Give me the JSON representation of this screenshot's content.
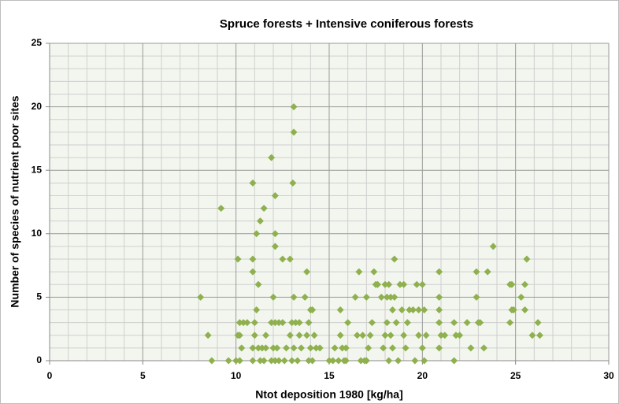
{
  "chart_data": {
    "type": "scatter",
    "title": "Spruce forests + Intensive coniferous forests",
    "xlabel": "Ntot deposition 1980 [kg/ha]",
    "ylabel": "Number of species of nutrient poor sites",
    "color": "#8fb04e",
    "xlim": [
      0,
      30
    ],
    "xticks": [
      0,
      5,
      10,
      15,
      20,
      25,
      30
    ],
    "ylim": [
      0,
      25
    ],
    "yticks": [
      0,
      5,
      10,
      15,
      20,
      25
    ],
    "grid": true,
    "minor_grid": true,
    "x": [
      8.1,
      8.5,
      8.7,
      9.2,
      9.6,
      10.1,
      10.1,
      10.2,
      10.2,
      10.4,
      10.6,
      10.2,
      10.3,
      10.0,
      10.9,
      10.9,
      10.9,
      11.2,
      11.1,
      11.0,
      11.0,
      10.9,
      10.9,
      11.1,
      11.3,
      11.5,
      11.2,
      11.4,
      11.3,
      11.5,
      11.6,
      11.6,
      11.9,
      12.1,
      12.1,
      12.1,
      12.0,
      11.9,
      12.1,
      12.3,
      12.0,
      12.2,
      12.1,
      11.9,
      12.3,
      12.5,
      12.5,
      12.6,
      12.7,
      12.9,
      13.1,
      13.1,
      13.05,
      13.1,
      13.0,
      13.2,
      12.9,
      13.1,
      13.0,
      13.3,
      13.4,
      13.5,
      13.4,
      13.8,
      13.7,
      14.0,
      14.1,
      13.8,
      13.9,
      14.0,
      13.9,
      14.1,
      14.2,
      14.3,
      14.5,
      15.0,
      15.2,
      15.3,
      15.5,
      15.6,
      15.6,
      15.7,
      15.8,
      15.9,
      16.0,
      15.9,
      16.4,
      16.5,
      16.6,
      16.7,
      16.8,
      16.9,
      17.0,
      17.1,
      17.0,
      17.2,
      17.4,
      17.5,
      17.6,
      17.3,
      17.8,
      18.0,
      18.1,
      18.0,
      17.9,
      18.2,
      18.2,
      18.3,
      18.1,
      18.3,
      18.4,
      18.5,
      18.5,
      18.4,
      18.6,
      18.7,
      18.8,
      18.9,
      19.0,
      19.0,
      19.1,
      19.2,
      19.3,
      19.5,
      19.6,
      19.7,
      19.8,
      19.8,
      20.0,
      20.1,
      20.0,
      20.1,
      20.2,
      20.9,
      20.9,
      20.9,
      20.9,
      20.9,
      21.0,
      21.2,
      21.7,
      21.7,
      21.8,
      22.0,
      22.4,
      22.6,
      22.9,
      22.9,
      23.0,
      23.1,
      23.3,
      23.5,
      23.8,
      24.7,
      24.8,
      24.7,
      24.8,
      24.9,
      25.3,
      25.5,
      25.5,
      25.6,
      25.9,
      26.2,
      26.3
    ],
    "values": [
      5,
      2,
      0,
      12,
      0,
      8,
      2,
      2,
      3,
      3,
      3,
      0,
      1,
      0,
      14,
      8,
      7,
      6,
      4,
      3,
      2,
      1,
      0,
      10,
      11,
      12,
      1,
      1,
      0,
      0,
      2,
      1,
      16,
      13,
      10,
      9,
      5,
      3,
      3,
      3,
      1,
      1,
      0,
      0,
      0,
      8,
      3,
      0,
      1,
      8,
      20,
      18,
      14,
      5,
      3,
      3,
      2,
      1,
      0,
      0,
      2,
      1,
      3,
      7,
      5,
      4,
      4,
      2,
      3,
      1,
      0,
      0,
      2,
      1,
      1,
      0,
      0,
      1,
      0,
      4,
      2,
      1,
      0,
      0,
      3,
      1,
      5,
      2,
      7,
      0,
      2,
      0,
      5,
      1,
      0,
      2,
      7,
      6,
      6,
      3,
      5,
      6,
      5,
      2,
      1,
      0,
      6,
      5,
      3,
      2,
      1,
      8,
      5,
      4,
      3,
      0,
      6,
      4,
      6,
      2,
      1,
      3,
      4,
      4,
      0,
      6,
      2,
      4,
      6,
      4,
      1,
      0,
      2,
      7,
      5,
      4,
      3,
      1,
      2,
      2,
      3,
      0,
      2,
      2,
      3,
      1,
      7,
      5,
      3,
      3,
      1,
      7,
      9,
      6,
      6,
      3,
      4,
      4,
      5,
      6,
      4,
      8,
      2,
      3,
      2
    ]
  }
}
